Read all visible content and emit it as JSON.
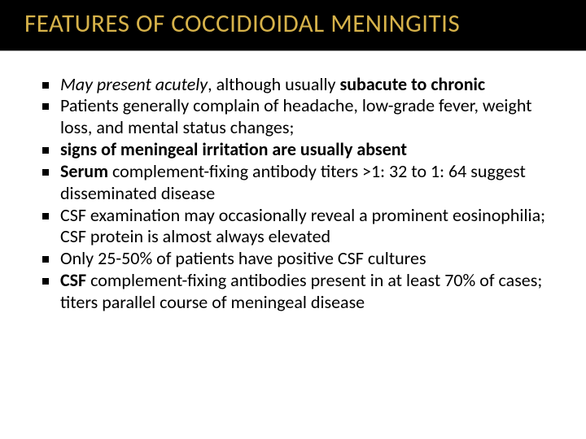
{
  "title": "FEATURES OF COCCIDIOIDAL MENINGITIS",
  "bullets": {
    "b0": {
      "seg0": "May present acutely",
      "seg1": ", although usually ",
      "seg2": "subacute to chronic"
    },
    "b1": {
      "seg0": "Patients generally complain of headache, low-grade fever, weight loss, and mental status changes;"
    },
    "b2": {
      "seg0": " signs of meningeal irritation are usually absent"
    },
    "b3": {
      "seg0": "Serum",
      "seg1": " complement-fixing antibody titers >1: 32 to 1: 64 suggest disseminated disease"
    },
    "b4": {
      "seg0": "CSF examination may occasionally reveal a prominent eosinophilia; CSF protein is almost always elevated"
    },
    "b5": {
      "seg0": "Only 25-50% of patients have positive CSF cultures"
    },
    "b6": {
      "seg0": "CSF",
      "seg1": " complement-fixing antibodies present in at least 70% of cases; titers parallel course of meningeal disease"
    }
  },
  "colors": {
    "header_bg": "#000000",
    "title_color": "#d6b24a",
    "body_bg": "#ffffff",
    "text_color": "#000000",
    "divider_color": "#a0a0a0"
  },
  "typography": {
    "title_fontsize": 31,
    "body_fontsize": 22,
    "font_family": "Calibri"
  }
}
